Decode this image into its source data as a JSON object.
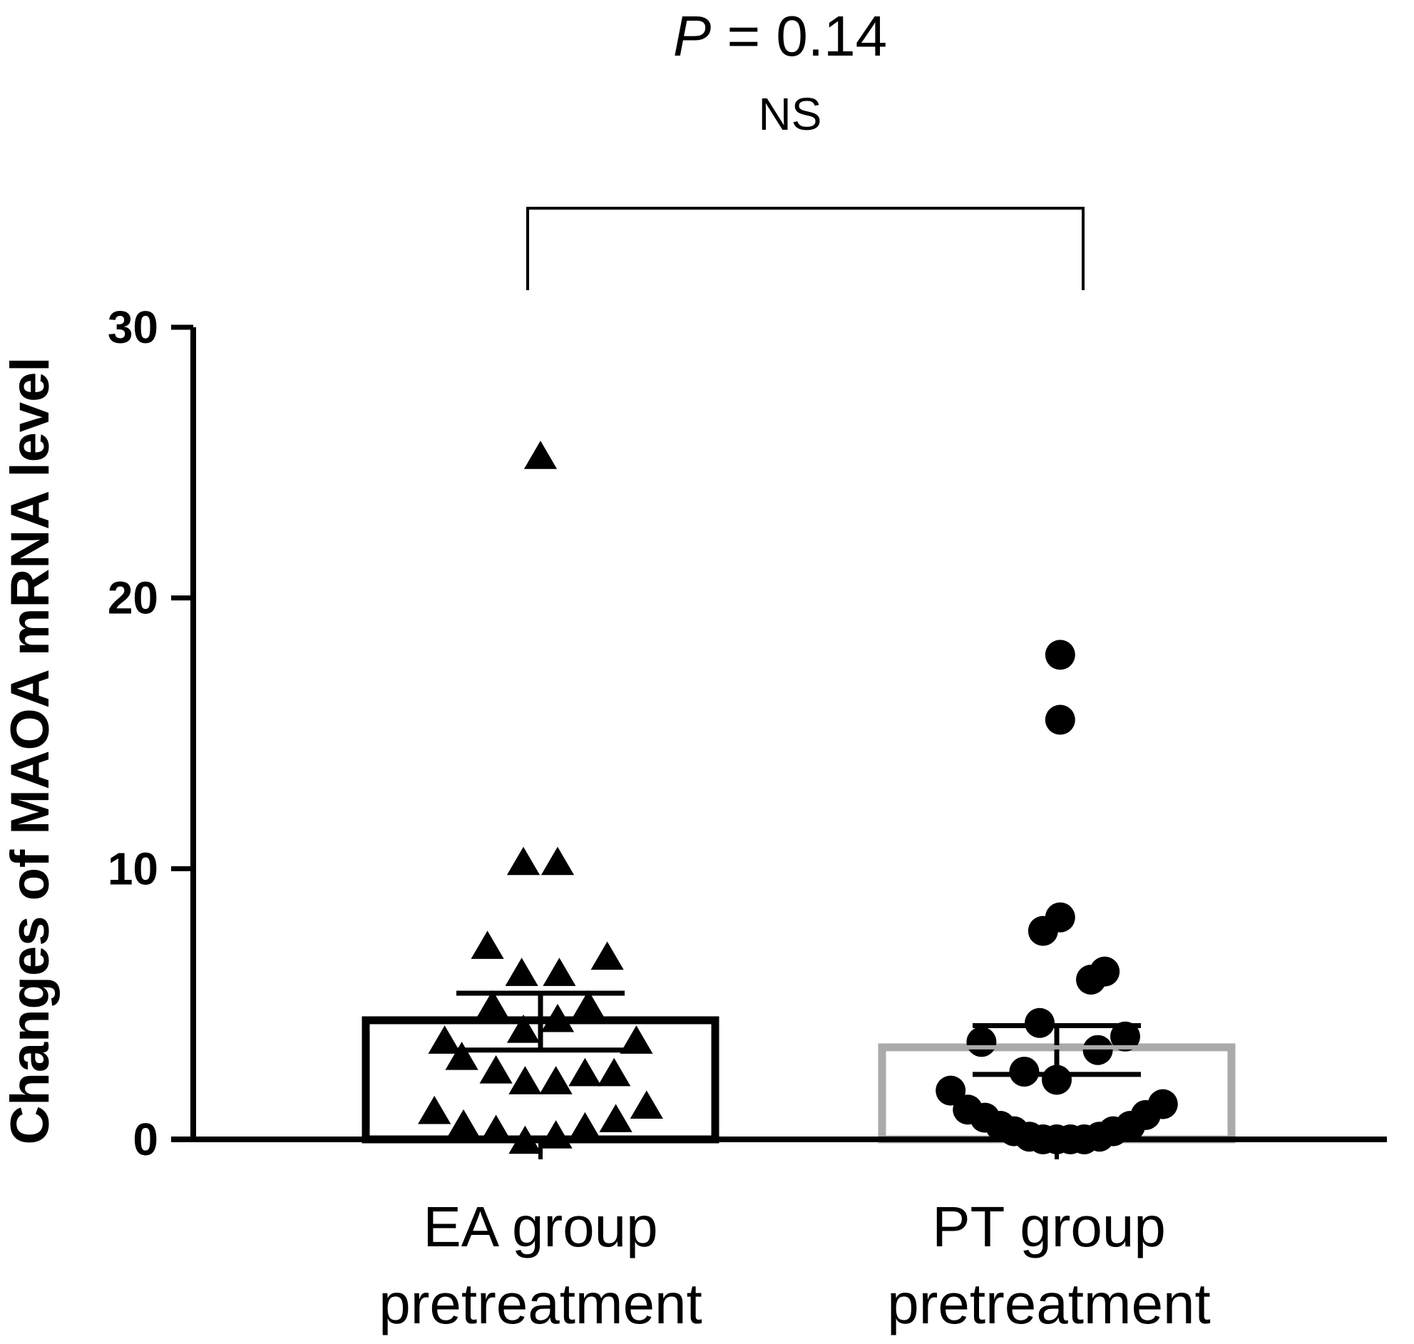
{
  "chart_data": {
    "type": "scatter",
    "ylabel": "Changes of MAOA mRNA level",
    "ylim": [
      0,
      30
    ],
    "yticks": [
      "0",
      "10",
      "20",
      "30"
    ],
    "categories": [
      {
        "line1": "EA group",
        "line2": "pretreatment"
      },
      {
        "line1": "PT group",
        "line2": "pretreatment"
      }
    ],
    "series": [
      {
        "category": 0,
        "marker": "triangle",
        "bar_color": "#000000",
        "mean": 4.4,
        "sem_low": 3.3,
        "sem_high": 5.4,
        "points": [
          {
            "x": 0.0,
            "y": 25.2
          },
          {
            "x": -0.1,
            "y": 10.2
          },
          {
            "x": 0.1,
            "y": 10.2
          },
          {
            "x": -0.31,
            "y": 7.1
          },
          {
            "x": 0.39,
            "y": 6.7
          },
          {
            "x": -0.11,
            "y": 6.1
          },
          {
            "x": 0.11,
            "y": 6.1
          },
          {
            "x": -0.28,
            "y": 4.9
          },
          {
            "x": 0.28,
            "y": 4.9
          },
          {
            "x": -0.1,
            "y": 4.0
          },
          {
            "x": 0.1,
            "y": 4.4
          },
          {
            "x": -0.56,
            "y": 3.6
          },
          {
            "x": 0.56,
            "y": 3.6
          },
          {
            "x": -0.46,
            "y": 3.0
          },
          {
            "x": -0.26,
            "y": 2.5
          },
          {
            "x": -0.09,
            "y": 2.1
          },
          {
            "x": 0.09,
            "y": 2.1
          },
          {
            "x": 0.26,
            "y": 2.4
          },
          {
            "x": 0.43,
            "y": 2.4
          },
          {
            "x": -0.62,
            "y": 1.0
          },
          {
            "x": 0.62,
            "y": 1.2
          },
          {
            "x": -0.45,
            "y": 0.5
          },
          {
            "x": -0.26,
            "y": 0.3
          },
          {
            "x": -0.09,
            "y": -0.1
          },
          {
            "x": 0.09,
            "y": 0.1
          },
          {
            "x": 0.26,
            "y": 0.4
          },
          {
            "x": 0.44,
            "y": 0.7
          }
        ]
      },
      {
        "category": 1,
        "marker": "circle",
        "bar_color": "#aaaaaa",
        "mean": 3.4,
        "sem_low": 2.4,
        "sem_high": 4.2,
        "points": [
          {
            "x": 0.02,
            "y": 17.9
          },
          {
            "x": 0.02,
            "y": 15.5
          },
          {
            "x": -0.08,
            "y": 7.7
          },
          {
            "x": 0.02,
            "y": 8.2
          },
          {
            "x": 0.2,
            "y": 5.9
          },
          {
            "x": 0.28,
            "y": 6.2
          },
          {
            "x": -0.1,
            "y": 4.3
          },
          {
            "x": -0.44,
            "y": 3.6
          },
          {
            "x": 0.4,
            "y": 3.8
          },
          {
            "x": 0.24,
            "y": 3.3
          },
          {
            "x": -0.19,
            "y": 2.5
          },
          {
            "x": 0.0,
            "y": 2.2
          },
          {
            "x": -0.62,
            "y": 1.8
          },
          {
            "x": -0.52,
            "y": 1.1
          },
          {
            "x": -0.42,
            "y": 0.8
          },
          {
            "x": -0.33,
            "y": 0.5
          },
          {
            "x": -0.25,
            "y": 0.3
          },
          {
            "x": -0.16,
            "y": 0.1
          },
          {
            "x": -0.08,
            "y": 0.0
          },
          {
            "x": 0.0,
            "y": 0.0
          },
          {
            "x": 0.08,
            "y": 0.0
          },
          {
            "x": 0.16,
            "y": 0.0
          },
          {
            "x": 0.25,
            "y": 0.1
          },
          {
            "x": 0.33,
            "y": 0.3
          },
          {
            "x": 0.43,
            "y": 0.5
          },
          {
            "x": 0.52,
            "y": 0.9
          },
          {
            "x": 0.62,
            "y": 1.3
          }
        ]
      }
    ],
    "comparison": {
      "from": 0,
      "to": 1,
      "p_label": "P",
      "p_value": " = 0.14",
      "significance": "NS"
    }
  }
}
